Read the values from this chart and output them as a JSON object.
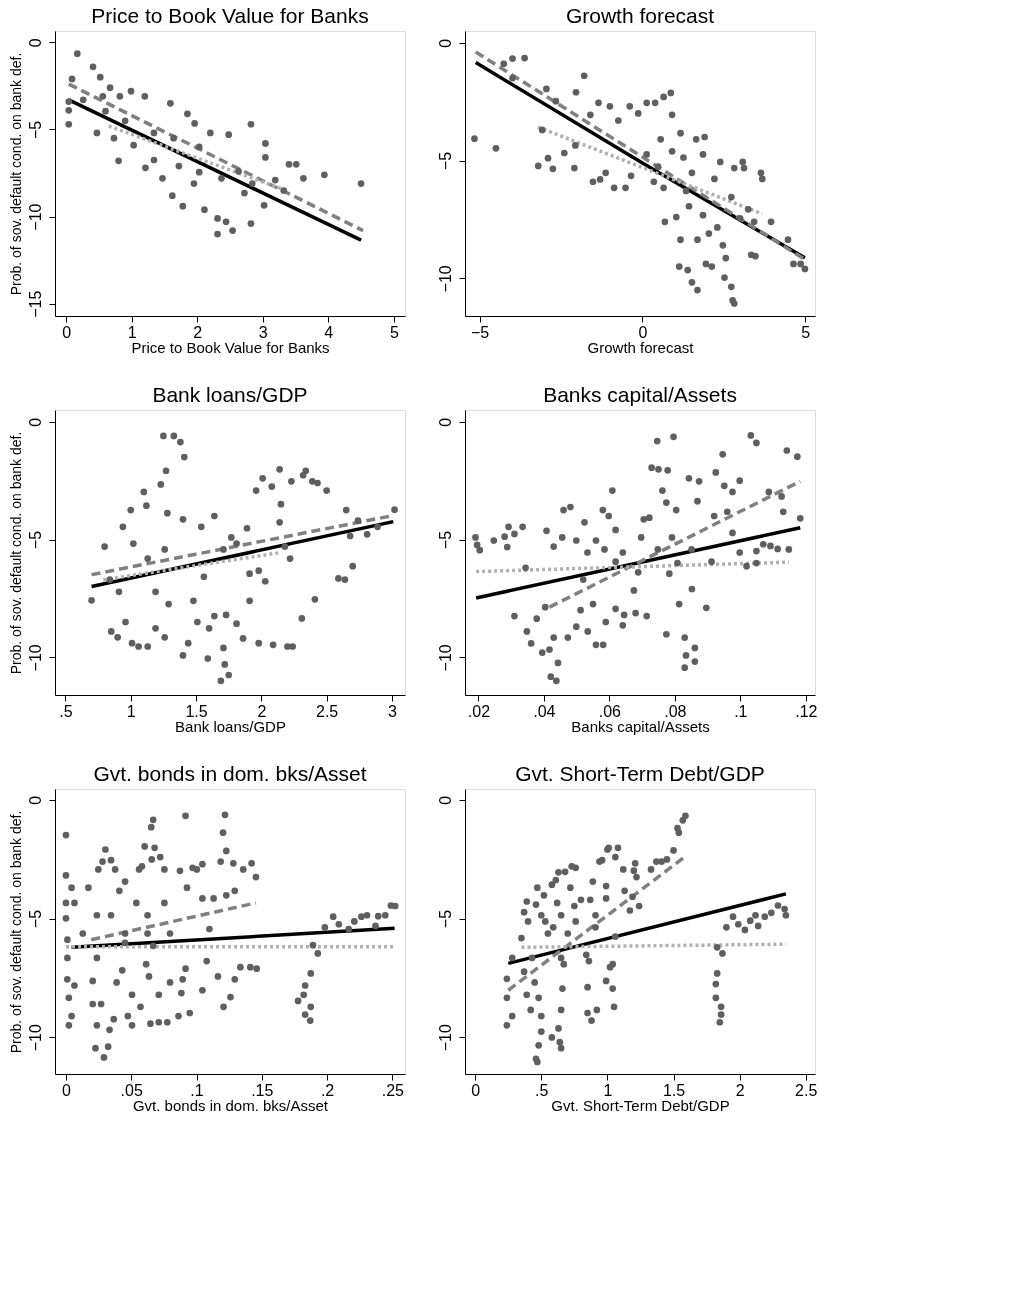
{
  "chart_data": [
    {
      "type": "scatter",
      "title": "Price to Book Value for Banks",
      "xlabel": "Price to Book Value for Banks",
      "ylabel": "Prob. of sov. default cond. on bank def.",
      "xlim": [
        -0.17,
        5.17
      ],
      "ylim": [
        -15.7,
        0.65
      ],
      "xticks": [
        0,
        1,
        2,
        3,
        4,
        5
      ],
      "yticks": [
        0,
        -5,
        -10,
        -15
      ],
      "grid": false,
      "series": [
        {
          "color": "#5f5f5f",
          "marker": "circle",
          "x": [
            0.04,
            0.04,
            0.09,
            0.17,
            0.41,
            0.52,
            0.67,
            0.82,
            0.99,
            1.2,
            1.59,
            1.85,
            1.96,
            2.2,
            2.48,
            2.82,
            3.04,
            3.04,
            3.4,
            3.51,
            3.94,
            4.5,
            3.62,
            3.19,
            3.32,
            0.47,
            0.8,
            1.21,
            1.47,
            1.62,
            1.78,
            1.95,
            2.11,
            2.31,
            2.31,
            2.54,
            2.44,
            2.82,
            3.02,
            2.72,
            2.37,
            2.03,
            1.72,
            1.34,
            1.03,
            0.73,
            0.9,
            1.34,
            1.64,
            2.03,
            2.63,
            2.84,
            0.04,
            0.26,
            0.56,
            0.6
          ],
          "values": [
            -4.7,
            -3.9,
            -2.1,
            -0.65,
            -1.4,
            -2.0,
            -2.6,
            -3.1,
            -2.8,
            -3.1,
            -3.5,
            -4.1,
            -4.65,
            -5.2,
            -5.3,
            -4.7,
            -5.8,
            -6.6,
            -7.0,
            -7.0,
            -7.6,
            -8.1,
            -7.8,
            -7.9,
            -8.5,
            -5.2,
            -6.8,
            -7.2,
            -7.8,
            -8.8,
            -9.4,
            -8.1,
            -9.6,
            -10.1,
            -11.0,
            -10.8,
            -10.3,
            -10.4,
            -9.35,
            -8.65,
            -7.8,
            -7.45,
            -7.1,
            -6.75,
            -5.9,
            -5.5,
            -4.5,
            -5.2,
            -5.5,
            -6.0,
            -7.4,
            -8.1,
            -3.4,
            -3.3,
            -3.1,
            -3.95
          ]
        },
        {
          "type": "line",
          "color": "#000000",
          "line_style": "solid",
          "x": [
            0.04,
            4.5
          ],
          "values": [
            -3.3,
            -11.35
          ]
        },
        {
          "type": "line",
          "color": "#808080",
          "line_style": "dashed",
          "x": [
            0.04,
            4.53
          ],
          "values": [
            -2.4,
            -10.8
          ]
        },
        {
          "type": "line",
          "color": "#b0b0b0",
          "line_style": "dotted",
          "x": [
            0.65,
            3.36
          ],
          "values": [
            -4.8,
            -8.5
          ]
        }
      ]
    },
    {
      "type": "scatter",
      "title": "Growth forecast",
      "xlabel": "Growth forecast",
      "xlim": [
        -5.45,
        5.3
      ],
      "ylim": [
        -11.6,
        0.5
      ],
      "xticks": [
        -5,
        0,
        5
      ],
      "yticks": [
        0,
        -5,
        -10
      ],
      "grid": false,
      "series": [
        {
          "color": "#5f5f5f",
          "marker": "circle",
          "x": [
            -5.16,
            -4.5,
            -4.26,
            -3.99,
            -3.62,
            -3.99,
            -1.79,
            -3.2,
            -2.75,
            -2.9,
            -3.08,
            -2.95,
            -2.66,
            -2.4,
            -2.04,
            -2.06,
            -2.09,
            -1.6,
            -1.35,
            -1.52,
            -1.3,
            -1.13,
            -0.87,
            -1.0,
            -0.74,
            -0.52,
            -0.39,
            -0.13,
            -0.35,
            0.13,
            0.39,
            0.65,
            0.87,
            0.35,
            0.65,
            0.69,
            0.91,
            1.17,
            1.65,
            1.91,
            1.86,
            2.39,
            2.82,
            3.12,
            3.08,
            3.64,
            3.68,
            3.95,
            4.47,
            4.64,
            4.99,
            4.86,
            1.04,
            1.13,
            1.39,
            1.52,
            1.69,
            1.95,
            2.13,
            2.52,
            2.73,
            2.77,
            2.82,
            2.56,
            3.34,
            3.47,
            3.43,
            1.86,
            2.04,
            2.3,
            2.47,
            1.69,
            1.17,
            1.43,
            1.34,
            2.73,
            3.25,
            2.21,
            1.26,
            1.52,
            0.91,
            0.56,
            0.13,
            0.48,
            3.0
          ],
          "values": [
            -4.07,
            -4.48,
            -0.89,
            -0.67,
            -0.65,
            -1.5,
            -1.4,
            -5.23,
            -5.35,
            -4.9,
            -3.7,
            -1.96,
            -2.48,
            -4.68,
            -2.1,
            -4.36,
            -5.32,
            -3.06,
            -2.55,
            -5.9,
            -5.8,
            -5.52,
            -6.16,
            -2.7,
            -3.3,
            -6.16,
            -2.7,
            -3.0,
            -5.65,
            -2.55,
            -2.55,
            -2.3,
            -2.13,
            -5.9,
            -6.16,
            -7.6,
            -3.06,
            -3.84,
            -4.1,
            -4.0,
            -4.74,
            -5.06,
            -5.32,
            -5.32,
            -5.06,
            -5.52,
            -5.78,
            -7.6,
            -8.36,
            -9.39,
            -9.6,
            -9.39,
            -7.4,
            -9.5,
            -9.65,
            -10.17,
            -10.5,
            -9.39,
            -9.5,
            -9.97,
            -10.36,
            -10.94,
            -11.07,
            -9.14,
            -9.0,
            -9.06,
            -7.6,
            -7.32,
            -8.1,
            -7.84,
            -8.6,
            -8.36,
            -8.36,
            -6.94,
            -6.29,
            -6.55,
            -7.07,
            -5.78,
            -4.87,
            -5.52,
            -4.61,
            -4.1,
            -4.74,
            -5.26,
            -7.45
          ]
        },
        {
          "type": "line",
          "color": "#000000",
          "line_style": "solid",
          "x": [
            -5.12,
            0.0,
            4.99
          ],
          "values": [
            -0.84,
            -5.1,
            -9.13
          ]
        },
        {
          "type": "line",
          "color": "#808080",
          "line_style": "dashed",
          "x": [
            -5.12,
            4.99
          ],
          "values": [
            -0.39,
            -9.2
          ]
        },
        {
          "type": "line",
          "color": "#b0b0b0",
          "line_style": "dotted",
          "x": [
            -3.21,
            3.68
          ],
          "values": [
            -3.58,
            -7.26
          ]
        }
      ]
    },
    {
      "type": "scatter",
      "title": "Bank loans/GDP",
      "xlabel": "Bank loans/GDP",
      "ylabel": "Prob. of sov. default cond. on bank def.",
      "xlim": [
        0.42,
        3.1
      ],
      "ylim": [
        -11.6,
        0.5
      ],
      "xticks": [
        {
          "value": 0.5,
          "label": ".5"
        },
        1,
        1.5,
        2,
        2.5,
        3
      ],
      "yticks": [
        0,
        -5,
        -10
      ],
      "grid": false,
      "series": [
        {
          "color": "#5f5f5f",
          "marker": "circle",
          "x": [
            0.7,
            0.8,
            0.84,
            0.85,
            0.9,
            0.96,
            0.94,
            1.0,
            1.01,
            1.06,
            1.13,
            1.1,
            1.12,
            1.19,
            1.26,
            1.25,
            1.33,
            1.38,
            1.41,
            1.27,
            1.23,
            1.28,
            1.4,
            1.26,
            1.19,
            1.29,
            1.4,
            1.44,
            1.48,
            1.51,
            1.54,
            1.56,
            1.59,
            1.6,
            1.64,
            1.64,
            1.69,
            1.75,
            1.72,
            1.71,
            1.73,
            1.71,
            1.81,
            1.89,
            1.86,
            1.91,
            1.91,
            1.98,
            1.98,
            2.01,
            1.96,
            2.03,
            2.09,
            2.08,
            2.14,
            2.15,
            2.14,
            2.18,
            2.2,
            2.24,
            2.23,
            2.22,
            2.32,
            2.34,
            2.31,
            2.39,
            2.43,
            2.41,
            2.5,
            2.59,
            2.65,
            2.64,
            2.7,
            2.68,
            2.74,
            2.81,
            2.89,
            3.02,
            1.77,
            1.81,
            1.02,
            1.13,
            0.91
          ],
          "values": [
            -7.58,
            -5.3,
            -6.7,
            -8.9,
            -9.15,
            -8.5,
            -4.46,
            -3.75,
            -9.4,
            -9.54,
            -9.54,
            -2.98,
            -3.56,
            -8.77,
            -9.15,
            -0.6,
            -0.6,
            -0.86,
            -1.5,
            -2.08,
            -2.66,
            -3.88,
            -4.14,
            -5.42,
            -7.22,
            -7.74,
            -9.92,
            -9.4,
            -7.6,
            -8.5,
            -4.46,
            -6.58,
            -10.05,
            -8.77,
            -4.0,
            -8.25,
            -11.0,
            -10.75,
            -10.3,
            -5.42,
            -8.2,
            -9.6,
            -8.57,
            -4.52,
            -9.2,
            -7.6,
            -6.45,
            -6.32,
            -9.4,
            -2.4,
            -2.92,
            -6.77,
            -9.47,
            -2.75,
            -2.02,
            -3.5,
            -4.27,
            -5.3,
            -9.54,
            -9.54,
            -2.53,
            -5.81,
            -2.27,
            -2.08,
            -8.35,
            -2.53,
            -2.6,
            -7.54,
            -2.92,
            -6.65,
            -3.75,
            -6.7,
            -6.13,
            -4.85,
            -4.2,
            -4.78,
            -4.46,
            -3.73,
            -4.91,
            -5.17,
            -5.17,
            -5.81,
            -7.22
          ]
        },
        {
          "type": "line",
          "color": "#000000",
          "line_style": "solid",
          "x": [
            0.7,
            3.01
          ],
          "values": [
            -6.99,
            -4.24
          ]
        },
        {
          "type": "line",
          "color": "#808080",
          "line_style": "dashed",
          "x": [
            0.7,
            3.01
          ],
          "values": [
            -6.49,
            -3.98
          ]
        },
        {
          "type": "line",
          "color": "#b0b0b0",
          "line_style": "dotted",
          "x": [
            0.79,
            2.15
          ],
          "values": [
            -6.71,
            -5.55
          ]
        }
      ]
    },
    {
      "type": "scatter",
      "title": "Banks capital/Assets",
      "xlabel": "Banks capital/Assets",
      "xlim": [
        0.0159,
        0.1228
      ],
      "ylim": [
        -11.6,
        0.5
      ],
      "xticks": [
        {
          "value": 0.02,
          "label": ".02"
        },
        {
          "value": 0.04,
          "label": ".04"
        },
        {
          "value": 0.06,
          "label": ".06"
        },
        {
          "value": 0.08,
          "label": ".08"
        },
        {
          "value": 0.1,
          "label": ".1"
        },
        {
          "value": 0.12,
          "label": ".12"
        }
      ],
      "yticks": [
        0,
        -5,
        -10
      ],
      "grid": false,
      "series": [
        {
          "color": "#5f5f5f",
          "marker": "circle",
          "x": [
            0.0191,
            0.0196,
            0.0204,
            0.0247,
            0.028,
            0.0292,
            0.0288,
            0.031,
            0.0335,
            0.0344,
            0.031,
            0.0348,
            0.0361,
            0.0378,
            0.0395,
            0.0417,
            0.0421,
            0.0438,
            0.0443,
            0.043,
            0.0473,
            0.0404,
            0.0408,
            0.043,
            0.046,
            0.0481,
            0.0499,
            0.0524,
            0.0533,
            0.052,
            0.0512,
            0.0499,
            0.0534,
            0.0559,
            0.0581,
            0.0589,
            0.0619,
            0.0641,
            0.0645,
            0.055,
            0.058,
            0.0598,
            0.0609,
            0.0619,
            0.0641,
            0.0619,
            0.0585,
            0.0559,
            0.0675,
            0.068,
            0.0688,
            0.0705,
            0.0714,
            0.0722,
            0.0729,
            0.0746,
            0.075,
            0.0762,
            0.0778,
            0.0796,
            0.0774,
            0.0783,
            0.0774,
            0.0791,
            0.0804,
            0.0808,
            0.0813,
            0.083,
            0.0834,
            0.083,
            0.0861,
            0.0861,
            0.0852,
            0.0896,
            0.0843,
            0.0869,
            0.0874,
            0.0925,
            0.0946,
            0.0912,
            0.0951,
            0.0976,
            0.0998,
            0.096,
            0.0976,
            0.0998,
            0.1019,
            0.1032,
            0.1049,
            0.1049,
            0.1049,
            0.107,
            0.1087,
            0.1126,
            0.1131,
            0.1142,
            0.1174,
            0.1183,
            0.1148,
            0.1114,
            0.1092,
            0.092,
            0.0851,
            0.0748,
            0.0697,
            0.0456
          ],
          "values": [
            -4.91,
            -5.23,
            -5.45,
            -5.04,
            -4.88,
            -4.46,
            -5.32,
            -4.76,
            -4.46,
            -6.2,
            -8.25,
            -8.9,
            -9.41,
            -8.36,
            -9.8,
            -9.67,
            -10.82,
            -11.0,
            -10.24,
            -9.16,
            -9.16,
            -7.87,
            -4.63,
            -5.3,
            -3.75,
            -3.62,
            -5.04,
            -4.27,
            -5.55,
            -6.7,
            -8.0,
            -8.7,
            -8.9,
            -9.47,
            -9.47,
            -8.5,
            -7.94,
            -8.64,
            -8.2,
            -7.74,
            -3.75,
            -4.0,
            -2.92,
            -4.59,
            -5.55,
            -5.94,
            -5.42,
            -5.04,
            -7.16,
            -8.12,
            -6.39,
            -4.14,
            -8.25,
            -4.07,
            -1.95,
            -0.82,
            -2.02,
            -2.92,
            -2.06,
            -0.64,
            -3.43,
            -6.45,
            -9.02,
            -4.91,
            -3.75,
            -6.0,
            -7.74,
            -9.16,
            -9.92,
            -10.44,
            -9.6,
            -10.18,
            -7.1,
            -7.9,
            -2.4,
            -3.37,
            -2.53,
            -2.15,
            -1.38,
            -5.94,
            -2.72,
            -2.98,
            -2.5,
            -3.82,
            -4.72,
            -5.55,
            -6.13,
            -0.58,
            -0.9,
            -5.49,
            -6.0,
            -5.2,
            -2.98,
            -3.17,
            -3.82,
            -1.22,
            -1.48,
            -4.1,
            -5.42,
            -5.4,
            -5.27,
            -4.0,
            -5.42,
            -5.42,
            -4.91,
            -4.91
          ]
        },
        {
          "type": "line",
          "color": "#000000",
          "line_style": "solid",
          "x": [
            0.0193,
            0.1183
          ],
          "values": [
            -7.48,
            -4.5
          ]
        },
        {
          "type": "line",
          "color": "#808080",
          "line_style": "dashed",
          "x": [
            0.0417,
            0.1183
          ],
          "values": [
            -7.87,
            -2.53
          ]
        },
        {
          "type": "line",
          "color": "#b0b0b0",
          "line_style": "dotted",
          "x": [
            0.0193,
            0.1148
          ],
          "values": [
            -6.36,
            -5.96
          ]
        }
      ]
    },
    {
      "type": "scatter",
      "title": "Gvt. bonds in dom. bks/Asset",
      "xlabel": "Gvt. bonds in dom. bks/Asset",
      "ylabel": "Prob. of sov. default cond. on bank def.",
      "xlim": [
        -0.0084,
        0.2597
      ],
      "ylim": [
        -11.55,
        0.46
      ],
      "xticks": [
        0,
        {
          "value": 0.05,
          "label": ".05"
        },
        {
          "value": 0.1,
          "label": ".1"
        },
        {
          "value": 0.15,
          "label": ".15"
        },
        {
          "value": 0.2,
          "label": ".2"
        },
        {
          "value": 0.25,
          "label": ".25"
        }
      ],
      "yticks": [
        0,
        -5,
        -10
      ],
      "grid": false,
      "series": [
        {
          "color": "#5f5f5f",
          "marker": "circle",
          "x": [
            0.0,
            0.0,
            0.0,
            0.0,
            0.0011,
            0.0011,
            0.001,
            0.0022,
            0.0022,
            0.0043,
            0.0043,
            0.0065,
            0.0065,
            0.0129,
            0.0172,
            0.0205,
            0.0205,
            0.0226,
            0.0237,
            0.0248,
            0.0269,
            0.028,
            0.0291,
            0.0302,
            0.0323,
            0.0334,
            0.0345,
            0.0377,
            0.0366,
            0.0388,
            0.0409,
            0.0431,
            0.0453,
            0.0474,
            0.0506,
            0.0506,
            0.0539,
            0.056,
            0.0571,
            0.0582,
            0.0603,
            0.0614,
            0.0636,
            0.0647,
            0.0653,
            0.0668,
            0.0657,
            0.0679,
            0.0722,
            0.0668,
            0.0711,
            0.0711,
            0.0754,
            0.0754,
            0.0776,
            0.0797,
            0.0862,
            0.0884,
            0.0894,
            0.0873,
            0.0916,
            0.0927,
            0.0916,
            0.0948,
            0.097,
            0.1002,
            0.1045,
            0.1045,
            0.1045,
            0.1078,
            0.1099,
            0.1131,
            0.1164,
            0.1185,
            0.1203,
            0.1218,
            0.1228,
            0.1207,
            0.1228,
            0.126,
            0.1282,
            0.1293,
            0.1293,
            0.1336,
            0.1358,
            0.1412,
            0.1422,
            0.1455,
            0.1461,
            0.1778,
            0.1821,
            0.1832,
            0.1832,
            0.1875,
            0.1871,
            0.1875,
            0.1892,
            0.1929,
            0.1983,
            0.2047,
            0.209,
            0.2166,
            0.2209,
            0.2263,
            0.2306,
            0.2371,
            0.2392,
            0.2446,
            0.2489,
            0.2522,
            0.0237,
            0.0345,
            0.0237,
            0.0453,
            0.0625,
            0.0625,
            0.0797,
            0.0453
          ],
          "values": [
            -1.48,
            -3.18,
            -4.34,
            -4.99,
            -5.89,
            -6.66,
            -7.56,
            -8.34,
            -9.5,
            -9.11,
            -3.7,
            -4.34,
            -7.82,
            -5.63,
            -3.7,
            -7.63,
            -8.6,
            -10.46,
            -9.5,
            -2.93,
            -8.6,
            -2.6,
            -10.85,
            -2.09,
            -10.4,
            -9.69,
            -2.54,
            -2.93,
            -9.24,
            -7.69,
            -3.83,
            -7.18,
            -3.44,
            -9.11,
            -9.5,
            -8.21,
            -4.34,
            -2.93,
            -8.72,
            -2.8,
            -1.96,
            -6.92,
            -7.44,
            -9.43,
            -1.15,
            -0.84,
            -2.51,
            -2.02,
            -2.41,
            -6.15,
            -9.37,
            -8.21,
            -2.93,
            -4.34,
            -9.37,
            -7.69,
            -9.11,
            -8.14,
            -7.56,
            -2.99,
            -0.67,
            -3.7,
            -7.11,
            -8.98,
            -2.86,
            -2.93,
            -2.71,
            -8.02,
            -4.15,
            -6.79,
            -5.44,
            -4.15,
            -7.44,
            -2.6,
            -1.38,
            -0.63,
            -2.15,
            -8.72,
            -4.02,
            -8.31,
            -2.67,
            -3.83,
            -7.56,
            -7.05,
            -2.93,
            -7.05,
            -2.67,
            -3.25,
            -7.11,
            -8.47,
            -8.21,
            -7.82,
            -9.05,
            -7.31,
            -9.3,
            -8.72,
            -6.12,
            -6.47,
            -5.37,
            -4.92,
            -5.24,
            -5.44,
            -5.12,
            -4.92,
            -4.86,
            -5.31,
            -4.9,
            -4.86,
            -4.45,
            -4.47,
            -4.86,
            -4.86,
            -6.66,
            -5.63,
            -4.86,
            -5.63,
            -5.63,
            -6.02
          ]
        },
        {
          "type": "line",
          "color": "#000000",
          "line_style": "solid",
          "x": [
            0.0043,
            0.2517
          ],
          "values": [
            -6.21,
            -5.41
          ]
        },
        {
          "type": "line",
          "color": "#808080",
          "line_style": "dashed",
          "x": [
            0.0194,
            0.1455
          ],
          "values": [
            -5.89,
            -4.34
          ]
        },
        {
          "type": "line",
          "color": "#b0b0b0",
          "line_style": "dotted",
          "x": [
            0.0,
            0.2517
          ],
          "values": [
            -6.19,
            -6.19
          ]
        }
      ]
    },
    {
      "type": "scatter",
      "title": "Gvt. Short-Term Debt/GDP",
      "xlabel": "Gvt. Short-Term Debt/GDP",
      "xlim": [
        -0.077,
        2.57
      ],
      "ylim": [
        -11.55,
        0.46
      ],
      "xticks": [
        0,
        {
          "value": 0.5,
          "label": ".5"
        },
        1,
        1.5,
        2,
        2.5
      ],
      "yticks": [
        0,
        -5,
        -10
      ],
      "grid": false,
      "series": [
        {
          "color": "#5f5f5f",
          "marker": "circle",
          "x": [
            0.24,
            0.24,
            0.24,
            0.28,
            0.28,
            0.35,
            0.37,
            0.37,
            0.39,
            0.4,
            0.39,
            0.42,
            0.45,
            0.47,
            0.46,
            0.43,
            0.48,
            0.5,
            0.5,
            0.48,
            0.46,
            0.47,
            0.52,
            0.53,
            0.58,
            0.58,
            0.61,
            0.63,
            0.59,
            0.62,
            0.63,
            0.64,
            0.65,
            0.65,
            0.66,
            0.65,
            0.67,
            0.68,
            0.65,
            0.7,
            0.73,
            0.76,
            0.72,
            0.75,
            0.8,
            0.84,
            0.85,
            0.85,
            0.86,
            0.88,
            0.87,
            0.89,
            0.92,
            0.94,
            0.96,
            0.99,
            0.99,
            1.0,
            1.01,
            0.99,
            1.02,
            1.04,
            1.04,
            1.05,
            1.06,
            1.08,
            1.06,
            1.12,
            1.13,
            1.17,
            1.19,
            1.21,
            1.2,
            1.22,
            1.24,
            1.33,
            1.37,
            1.41,
            1.45,
            1.5,
            1.53,
            1.54,
            1.57,
            1.59,
            1.83,
            1.87,
            1.83,
            1.82,
            1.82,
            1.86,
            1.86,
            1.85,
            1.9,
            1.95,
            1.99,
            2.04,
            2.08,
            2.14,
            2.12,
            2.19,
            2.24,
            2.29,
            2.34,
            2.35,
            0.5,
            0.76,
            0.91,
            0.91,
            0.55
          ],
          "values": [
            -9.5,
            -8.34,
            -7.54,
            -9.11,
            -6.66,
            -5.82,
            -7.24,
            -4.73,
            -4.28,
            -5.12,
            -8.21,
            -8.85,
            -7.69,
            -3.7,
            -4.41,
            -6.66,
            -8.34,
            -9.11,
            -9.76,
            -10.34,
            -10.91,
            -11.04,
            -4.02,
            -5.12,
            -10.01,
            -3.57,
            -3.38,
            -3.05,
            -5.37,
            -4.34,
            -9.63,
            -10.21,
            -10.46,
            -8.85,
            -7.95,
            -6.66,
            -6.92,
            -3.03,
            -4.86,
            -5.63,
            -2.8,
            -2.86,
            -3.7,
            -4.47,
            -4.21,
            -6.53,
            -8.98,
            -7.89,
            -6.79,
            -9.3,
            -4.21,
            -3.44,
            -8.85,
            -2.6,
            -2.54,
            -4.15,
            -3.63,
            -2.09,
            -2.02,
            -7.63,
            -7.05,
            -6.92,
            -7.95,
            -8.72,
            -2.41,
            -2.02,
            -5.76,
            -2.93,
            -3.83,
            -4.66,
            -4.08,
            -2.67,
            -2.98,
            -3.25,
            -4.47,
            -2.93,
            -2.6,
            -2.6,
            -2.51,
            -2.13,
            -1.19,
            -1.38,
            -0.86,
            -0.67,
            -6.21,
            -6.47,
            -7.31,
            -7.76,
            -8.34,
            -8.72,
            -9.05,
            -9.37,
            -5.37,
            -4.92,
            -5.24,
            -5.48,
            -5.09,
            -5.31,
            -4.86,
            -4.92,
            -4.76,
            -4.45,
            -4.6,
            -4.86,
            -4.86,
            -5.12,
            -4.86,
            -5.37,
            -5.63
          ]
        },
        {
          "type": "line",
          "color": "#000000",
          "line_style": "solid",
          "x": [
            0.25,
            2.35
          ],
          "values": [
            -6.89,
            -3.96
          ]
        },
        {
          "type": "line",
          "color": "#808080",
          "line_style": "dashed",
          "x": [
            0.25,
            1.59
          ],
          "values": [
            -8.02,
            -2.38
          ]
        },
        {
          "type": "line",
          "color": "#b0b0b0",
          "line_style": "dotted",
          "x": [
            0.35,
            2.35
          ],
          "values": [
            -6.21,
            -6.08
          ]
        }
      ]
    }
  ]
}
